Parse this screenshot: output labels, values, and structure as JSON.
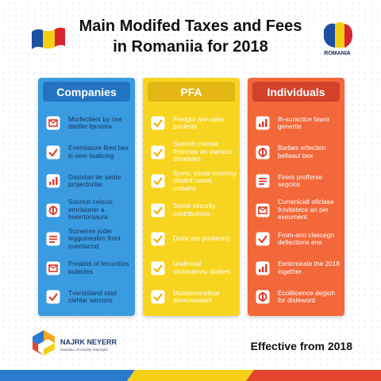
{
  "header": {
    "title_lines": [
      "Main Modifed Taxes and Fees",
      "in Romaniia for 2018"
    ],
    "map_label": "ROMANIA"
  },
  "columns": [
    {
      "title": "Companies",
      "items": [
        "Morfectient by ose dietiler fproolra",
        "Enemiaiure fired bex ki oeei lisalicing",
        "Davixian ter sedor projectorilar",
        "Socrest celocis emrisioner a hoerrtorsaura",
        "Scineinre joder legguinestirn front overtiacod",
        "Freablis of lercurities buleides",
        "Tverstsland stad clehlar sercons"
      ]
    },
    {
      "title": "PFA",
      "items": [
        "Fredgur ani-cales poclesis",
        "Summit cherow fhrerciax en elanicer dimelides",
        "Syers, social resering chatinf castal, urstains",
        "Social security contributions",
        "Dolor are poviiering",
        "Undential stickedenny diallent",
        "Matsiemeretical disocrasalant"
      ]
    },
    {
      "title": "Individuals",
      "items": [
        "Ih-suractice fawor genertie",
        "Barbes erfection bellaaul bex",
        "Firers profferse segcins",
        "Currenicidt oficlase frovitetece an per exeurnent",
        "From-ano clsecegn defiections ens",
        "Eentrnorate the 2018 ingether",
        "Ecolitioence degioh for disleword"
      ]
    }
  ],
  "footer": {
    "logo_name": "NAJRK NEYERR",
    "logo_tagline": "Nasodiur of Usodiry Interegrid",
    "effective": "Effective from 2018"
  }
}
